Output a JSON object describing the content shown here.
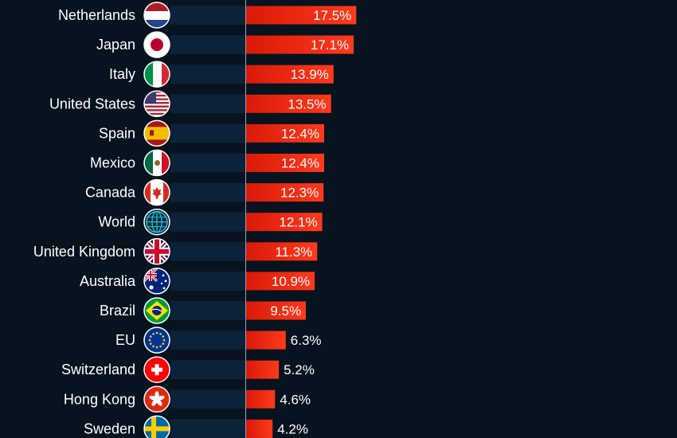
{
  "chart_data": {
    "type": "bar",
    "orientation": "horizontal",
    "unit": "%",
    "categories": [
      "Netherlands",
      "Japan",
      "Italy",
      "United States",
      "Spain",
      "Mexico",
      "Canada",
      "World",
      "United Kingdom",
      "Australia",
      "Brazil",
      "EU",
      "Switzerland",
      "Hong Kong",
      "Sweden"
    ],
    "values": [
      17.5,
      17.1,
      13.9,
      13.5,
      12.4,
      12.4,
      12.3,
      12.1,
      11.3,
      10.9,
      9.5,
      6.3,
      5.2,
      4.6,
      4.2
    ],
    "value_labels": [
      "17.5%",
      "17.1%",
      "13.9%",
      "13.5%",
      "12.4%",
      "12.4%",
      "12.3%",
      "12.1%",
      "11.3%",
      "10.9%",
      "9.5%",
      "6.3%",
      "5.2%",
      "4.6%",
      "4.2%"
    ],
    "flag_icons": [
      "flag-netherlands-icon",
      "flag-japan-icon",
      "flag-italy-icon",
      "flag-united-states-icon",
      "flag-spain-icon",
      "flag-mexico-icon",
      "flag-canada-icon",
      "globe-icon",
      "flag-united-kingdom-icon",
      "flag-australia-icon",
      "flag-brazil-icon",
      "flag-eu-icon",
      "flag-switzerland-icon",
      "flag-hong-kong-icon",
      "flag-sweden-icon"
    ],
    "colors": {
      "background": "#07131f",
      "row_band": "#0c2238",
      "axis_line": "#8fa6bf",
      "bar_start": "#e81f0a",
      "bar_end": "#ff3d1f",
      "text": "#ffffff"
    }
  }
}
